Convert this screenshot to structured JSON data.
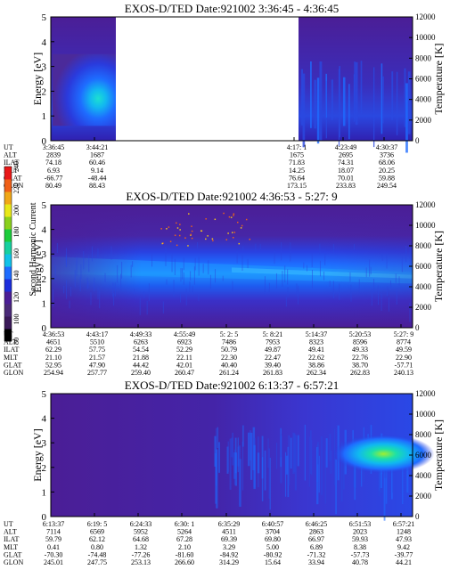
{
  "colorbar": {
    "label": "Second Harmonic Current",
    "ticks": [
      "80",
      "100",
      "120",
      "140",
      "160",
      "180",
      "200",
      "220",
      "240"
    ],
    "colors": [
      "#000000",
      "#3a1a58",
      "#4a2a78",
      "#4b1e96",
      "#1c2edc",
      "#1e6cff",
      "#11c2e8",
      "#17d0a0",
      "#1ccc3c",
      "#8ad01c",
      "#e8e818",
      "#f0a818",
      "#f06018",
      "#e81818"
    ]
  },
  "panels": [
    {
      "title": "EXOS-D/TED   Date:921002  3:36:45 - 4:36:45",
      "ylabel": "Energy [eV]",
      "y2label": "Temperature [K]",
      "yticks": [
        "0",
        "1",
        "2",
        "3",
        "4",
        "5"
      ],
      "y2ticks": [
        "0",
        "2000",
        "4000",
        "6000",
        "8000",
        "10000",
        "12000"
      ],
      "row_labels": [
        "UT",
        "ALT",
        "ILAT",
        "MLT",
        "GLAT",
        "GLON"
      ],
      "columns": [
        {
          "ut": "3:36:45",
          "alt": "2839",
          "ilat": "74.18",
          "mlt": "6.93",
          "glat": "-66.77",
          "glon": "80.49"
        },
        {
          "ut": "3:44:21",
          "alt": "1687",
          "ilat": "60.46",
          "mlt": "9.14",
          "glat": "-48.44",
          "glon": "88.43"
        },
        {
          "ut": "4:17: 1",
          "alt": "1675",
          "ilat": "71.83",
          "mlt": "14.25",
          "glat": "76.64",
          "glon": "173.15"
        },
        {
          "ut": "4:23:49",
          "alt": "2695",
          "ilat": "74.31",
          "mlt": "18.07",
          "glat": "70.01",
          "glon": "233.83"
        },
        {
          "ut": "4:30:37",
          "alt": "3736",
          "ilat": "68.06",
          "mlt": "20.25",
          "glat": "59.88",
          "glon": "249.54"
        }
      ]
    },
    {
      "title": "EXOS-D/TED   Date:921002  4:36:53 - 5:27: 9",
      "ylabel": "Energy [eV]",
      "y2label": "Temperature [K]",
      "yticks": [
        "0",
        "1",
        "2",
        "3",
        "4",
        "5"
      ],
      "y2ticks": [
        "0",
        "2000",
        "4000",
        "6000",
        "8000",
        "10000",
        "12000"
      ],
      "row_labels": [
        "UT",
        "ALT",
        "ILAT",
        "MLT",
        "GLAT",
        "GLON"
      ],
      "columns": [
        {
          "ut": "4:36:53",
          "alt": "4651",
          "ilat": "62.29",
          "mlt": "21.10",
          "glat": "52.95",
          "glon": "254.94"
        },
        {
          "ut": "4:43:17",
          "alt": "5510",
          "ilat": "57.75",
          "mlt": "21.57",
          "glat": "47.90",
          "glon": "257.77"
        },
        {
          "ut": "4:49:33",
          "alt": "6263",
          "ilat": "54.54",
          "mlt": "21.88",
          "glat": "44.42",
          "glon": "259.40"
        },
        {
          "ut": "4:55:49",
          "alt": "6923",
          "ilat": "52.29",
          "mlt": "22.11",
          "glat": "42.01",
          "glon": "260.47"
        },
        {
          "ut": "5: 2: 5",
          "alt": "7486",
          "ilat": "50.79",
          "mlt": "22.30",
          "glat": "40.40",
          "glon": "261.24"
        },
        {
          "ut": "5: 8:21",
          "alt": "7953",
          "ilat": "49.87",
          "mlt": "22.47",
          "glat": "39.40",
          "glon": "261.83"
        },
        {
          "ut": "5:14:37",
          "alt": "8323",
          "ilat": "49.41",
          "mlt": "22.62",
          "glat": "38.86",
          "glon": "262.34"
        },
        {
          "ut": "5:20:53",
          "alt": "8596",
          "ilat": "49.33",
          "mlt": "22.76",
          "glat": "38.70",
          "glon": "262.83"
        },
        {
          "ut": "5:27: 9",
          "alt": "8774",
          "ilat": "49.59",
          "mlt": "22.90",
          "glat": "-57.71",
          "glon": "240.13"
        }
      ]
    },
    {
      "title": "EXOS-D/TED   Date:921002  6:13:37 - 6:57:21",
      "ylabel": "Energy [eV]",
      "y2label": "Temperature [K]",
      "yticks": [
        "0",
        "1",
        "2",
        "3",
        "4",
        "5"
      ],
      "y2ticks": [
        "0",
        "2000",
        "4000",
        "6000",
        "8000",
        "10000",
        "12000"
      ],
      "row_labels": [
        "UT",
        "ALT",
        "ILAT",
        "MLT",
        "GLAT",
        "GLON"
      ],
      "columns": [
        {
          "ut": "6:13:37",
          "alt": "7114",
          "ilat": "59.79",
          "mlt": "0.41",
          "glat": "-70.30",
          "glon": "245.01"
        },
        {
          "ut": "6:19: 5",
          "alt": "6569",
          "ilat": "62.12",
          "mlt": "0.80",
          "glat": "-74.48",
          "glon": "247.75"
        },
        {
          "ut": "6:24:33",
          "alt": "5952",
          "ilat": "64.68",
          "mlt": "1.32",
          "glat": "-77.26",
          "glon": "253.13"
        },
        {
          "ut": "6:30: 1",
          "alt": "5264",
          "ilat": "67.28",
          "mlt": "2.10",
          "glat": "-81.60",
          "glon": "266.60"
        },
        {
          "ut": "6:35:29",
          "alt": "4511",
          "ilat": "69.39",
          "mlt": "3.29",
          "glat": "-84.92",
          "glon": "314.29"
        },
        {
          "ut": "6:40:57",
          "alt": "3704",
          "ilat": "69.80",
          "mlt": "5.00",
          "glat": "-80.92",
          "glon": "15.64"
        },
        {
          "ut": "6:46:25",
          "alt": "2863",
          "ilat": "66.97",
          "mlt": "6.89",
          "glat": "-71.32",
          "glon": "33.94"
        },
        {
          "ut": "6:51:53",
          "alt": "2023",
          "ilat": "59.93",
          "mlt": "8.38",
          "glat": "-57.73",
          "glon": "40.78"
        },
        {
          "ut": "6:57:21",
          "alt": "1248",
          "ilat": "47.93",
          "mlt": "9.42",
          "glat": "-39.77",
          "glon": "44.21"
        }
      ]
    }
  ],
  "chart_data": [
    {
      "type": "heatmap",
      "title": "EXOS-D/TED   Date:921002  3:36:45 - 4:36:45",
      "ylabel": "Energy [eV]",
      "y2label": "Temperature [K]",
      "ylim": [
        0,
        5
      ],
      "y2lim": [
        0,
        12000
      ],
      "x": [
        "3:36:45",
        "3:44:21",
        "4:17: 1",
        "4:23:49",
        "4:30:37"
      ],
      "data_gaps": [
        [
          "3:44:21",
          "4:17: 1"
        ]
      ]
    },
    {
      "type": "heatmap",
      "title": "EXOS-D/TED   Date:921002  4:36:53 - 5:27: 9",
      "ylabel": "Energy [eV]",
      "y2label": "Temperature [K]",
      "ylim": [
        0,
        5
      ],
      "y2lim": [
        0,
        12000
      ],
      "x": [
        "4:36:53",
        "4:43:17",
        "4:49:33",
        "4:55:49",
        "5: 2: 5",
        "5: 8:21",
        "5:14:37",
        "5:20:53",
        "5:27: 9"
      ]
    },
    {
      "type": "heatmap",
      "title": "EXOS-D/TED   Date:921002  6:13:37 - 6:57:21",
      "ylabel": "Energy [eV]",
      "y2label": "Temperature [K]",
      "ylim": [
        0,
        5
      ],
      "y2lim": [
        0,
        12000
      ],
      "x": [
        "6:13:37",
        "6:19: 5",
        "6:24:33",
        "6:30: 1",
        "6:35:29",
        "6:40:57",
        "6:46:25",
        "6:51:53",
        "6:57:21"
      ]
    }
  ]
}
